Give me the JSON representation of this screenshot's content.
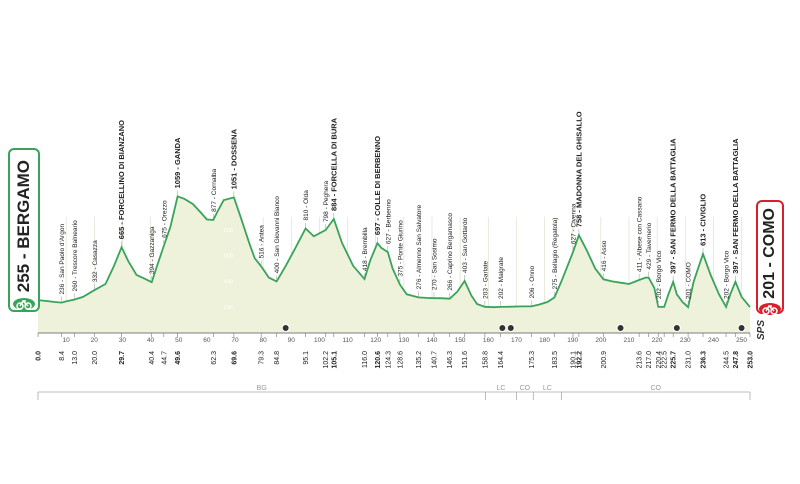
{
  "colors": {
    "fill": "#eef2da",
    "line": "#3aa35a",
    "start": "#3aa35a",
    "finish": "#d9202a",
    "text": "#333333"
  },
  "start_badge": {
    "text": "255 - BERGAMO",
    "icon": "cyclist-icon"
  },
  "finish_badge": {
    "text": "201 - COMO",
    "icon": "cyclist-icon"
  },
  "sponsor_mark": "SPS",
  "chart_data": {
    "type": "area",
    "title": "",
    "xlabel": "",
    "ylabel": "",
    "xlim": [
      0,
      253
    ],
    "ylim": [
      0,
      1100
    ],
    "x_ticks": [
      0,
      10,
      20,
      30,
      40,
      50,
      60,
      70,
      80,
      90,
      100,
      110,
      120,
      130,
      140,
      150,
      160,
      170,
      180,
      190,
      200,
      210,
      220,
      230,
      240,
      250
    ],
    "y_ticks": [
      200,
      400,
      600,
      800
    ],
    "profile": [
      [
        0,
        255
      ],
      [
        3,
        248
      ],
      [
        6,
        240
      ],
      [
        8.4,
        236
      ],
      [
        10,
        245
      ],
      [
        13,
        260
      ],
      [
        16,
        280
      ],
      [
        20,
        332
      ],
      [
        24,
        380
      ],
      [
        27,
        520
      ],
      [
        29.7,
        665
      ],
      [
        32,
        560
      ],
      [
        35,
        450
      ],
      [
        38,
        420
      ],
      [
        40.4,
        394
      ],
      [
        42,
        500
      ],
      [
        44.7,
        675
      ],
      [
        47,
        820
      ],
      [
        49.6,
        1059
      ],
      [
        52,
        1040
      ],
      [
        55,
        1000
      ],
      [
        58,
        930
      ],
      [
        60,
        880
      ],
      [
        62.3,
        877
      ],
      [
        64,
        950
      ],
      [
        66,
        1030
      ],
      [
        69.6,
        1051
      ],
      [
        72,
        900
      ],
      [
        75,
        700
      ],
      [
        77,
        580
      ],
      [
        79.3,
        516
      ],
      [
        82,
        430
      ],
      [
        84.8,
        400
      ],
      [
        88,
        520
      ],
      [
        91,
        640
      ],
      [
        95.1,
        810
      ],
      [
        98,
        750
      ],
      [
        102.2,
        798
      ],
      [
        105.1,
        884
      ],
      [
        108,
        700
      ],
      [
        112,
        520
      ],
      [
        116,
        418
      ],
      [
        118,
        560
      ],
      [
        120.6,
        697
      ],
      [
        122,
        660
      ],
      [
        124.3,
        627
      ],
      [
        126,
        500
      ],
      [
        128.6,
        375
      ],
      [
        131,
        300
      ],
      [
        135.2,
        276
      ],
      [
        138,
        272
      ],
      [
        140.7,
        270
      ],
      [
        143,
        270
      ],
      [
        146.3,
        266
      ],
      [
        149,
        320
      ],
      [
        151.6,
        403
      ],
      [
        154,
        290
      ],
      [
        156,
        225
      ],
      [
        158.8,
        203
      ],
      [
        162,
        200
      ],
      [
        164.4,
        202
      ],
      [
        168,
        204
      ],
      [
        172,
        206
      ],
      [
        175.3,
        206
      ],
      [
        178,
        220
      ],
      [
        181,
        240
      ],
      [
        183.5,
        275
      ],
      [
        186,
        400
      ],
      [
        190.1,
        627
      ],
      [
        192.2,
        758
      ],
      [
        195,
        640
      ],
      [
        198,
        500
      ],
      [
        200.9,
        416
      ],
      [
        204,
        400
      ],
      [
        207,
        390
      ],
      [
        210,
        380
      ],
      [
        213.6,
        411
      ],
      [
        216,
        430
      ],
      [
        217,
        429
      ],
      [
        219,
        350
      ],
      [
        220.4,
        202
      ],
      [
        222.5,
        202
      ],
      [
        224,
        300
      ],
      [
        225.7,
        397
      ],
      [
        227,
        300
      ],
      [
        229,
        240
      ],
      [
        231,
        201
      ],
      [
        233,
        400
      ],
      [
        236.3,
        613
      ],
      [
        239,
        450
      ],
      [
        242,
        300
      ],
      [
        244.5,
        202
      ],
      [
        246,
        300
      ],
      [
        247.8,
        397
      ],
      [
        250,
        280
      ],
      [
        253,
        201
      ]
    ],
    "bottom_km": [
      {
        "km": 0,
        "label": "0.0",
        "bold": true
      },
      {
        "km": 8.4,
        "label": "8.4"
      },
      {
        "km": 13.0,
        "label": "13.0"
      },
      {
        "km": 20.0,
        "label": "20.0"
      },
      {
        "km": 29.7,
        "label": "29.7",
        "bold": true
      },
      {
        "km": 40.4,
        "label": "40.4"
      },
      {
        "km": 44.7,
        "label": "44.7"
      },
      {
        "km": 49.6,
        "label": "49.6",
        "bold": true
      },
      {
        "km": 62.3,
        "label": "62.3"
      },
      {
        "km": 69.6,
        "label": "69.6",
        "bold": true
      },
      {
        "km": 79.3,
        "label": "79.3"
      },
      {
        "km": 84.8,
        "label": "84.8"
      },
      {
        "km": 95.1,
        "label": "95.1"
      },
      {
        "km": 102.2,
        "label": "102.2"
      },
      {
        "km": 105.1,
        "label": "105.1",
        "bold": true
      },
      {
        "km": 116.0,
        "label": "116.0"
      },
      {
        "km": 120.6,
        "label": "120.6",
        "bold": true
      },
      {
        "km": 124.3,
        "label": "124.3"
      },
      {
        "km": 128.6,
        "label": "128.6"
      },
      {
        "km": 135.2,
        "label": "135.2"
      },
      {
        "km": 140.7,
        "label": "140.7"
      },
      {
        "km": 146.3,
        "label": "146.3"
      },
      {
        "km": 151.6,
        "label": "151.6"
      },
      {
        "km": 158.8,
        "label": "158.8"
      },
      {
        "km": 164.4,
        "label": "164.4"
      },
      {
        "km": 175.3,
        "label": "175.3"
      },
      {
        "km": 183.5,
        "label": "183.5"
      },
      {
        "km": 190.1,
        "label": "190.1"
      },
      {
        "km": 192.2,
        "label": "192.2",
        "bold": true
      },
      {
        "km": 200.9,
        "label": "200.9"
      },
      {
        "km": 213.6,
        "label": "213.6"
      },
      {
        "km": 217.0,
        "label": "217.0"
      },
      {
        "km": 220.4,
        "label": "220.4"
      },
      {
        "km": 222.5,
        "label": "222.5"
      },
      {
        "km": 225.7,
        "label": "225.7",
        "bold": true
      },
      {
        "km": 231.0,
        "label": "231.0"
      },
      {
        "km": 236.3,
        "label": "236.3",
        "bold": true
      },
      {
        "km": 244.5,
        "label": "244.5"
      },
      {
        "km": 247.8,
        "label": "247.8",
        "bold": true
      },
      {
        "km": 253.0,
        "label": "253.0",
        "bold": true
      }
    ],
    "places": [
      {
        "km": 8.4,
        "alt": "236",
        "name": "San Paolo d'Argon"
      },
      {
        "km": 13.0,
        "alt": "260",
        "name": "Trescore Balneario"
      },
      {
        "km": 20.0,
        "alt": "332",
        "name": "Casazza"
      },
      {
        "km": 29.7,
        "alt": "665",
        "name": "FORCELLINO DI BIANZANO",
        "bold": true
      },
      {
        "km": 40.4,
        "alt": "394",
        "name": "Gazzaniga"
      },
      {
        "km": 44.7,
        "alt": "675",
        "name": "Orezzo"
      },
      {
        "km": 49.6,
        "alt": "1059",
        "name": "GANDA",
        "bold": true
      },
      {
        "km": 62.3,
        "alt": "877",
        "name": "Cornalba"
      },
      {
        "km": 69.6,
        "alt": "1051",
        "name": "DOSSENA",
        "bold": true
      },
      {
        "km": 79.3,
        "alt": "516",
        "name": "Antea"
      },
      {
        "km": 84.8,
        "alt": "400",
        "name": "San Giovanni Bianco"
      },
      {
        "km": 95.1,
        "alt": "810",
        "name": "Olda"
      },
      {
        "km": 102.2,
        "alt": "798",
        "name": "Peghera"
      },
      {
        "km": 105.1,
        "alt": "884",
        "name": "FORCELLA DI BURA",
        "bold": true
      },
      {
        "km": 116.0,
        "alt": "418",
        "name": "Brembilla"
      },
      {
        "km": 120.6,
        "alt": "697",
        "name": "COLLE DI BERBENNO",
        "bold": true
      },
      {
        "km": 124.3,
        "alt": "627",
        "name": "Berbenno"
      },
      {
        "km": 128.6,
        "alt": "375",
        "name": "Ponte Giurino"
      },
      {
        "km": 135.2,
        "alt": "276",
        "name": "Almenno San Salvatore"
      },
      {
        "km": 140.7,
        "alt": "270",
        "name": "San Sosimo"
      },
      {
        "km": 146.3,
        "alt": "266",
        "name": "Caprino Bergamasco"
      },
      {
        "km": 151.6,
        "alt": "403",
        "name": "San Gottardo"
      },
      {
        "km": 158.8,
        "alt": "203",
        "name": "Garlate"
      },
      {
        "km": 164.4,
        "alt": "202",
        "name": "Malgrate"
      },
      {
        "km": 175.3,
        "alt": "206",
        "name": "Onno"
      },
      {
        "km": 183.5,
        "alt": "275",
        "name": "Bellagio (Regatola)"
      },
      {
        "km": 190.1,
        "alt": "627",
        "name": "Civenna"
      },
      {
        "km": 192.2,
        "alt": "758",
        "name": "MADONNA DEL GHISALLO",
        "bold": true
      },
      {
        "km": 200.9,
        "alt": "416",
        "name": "Asso"
      },
      {
        "km": 213.6,
        "alt": "411",
        "name": "Albese con Cassano"
      },
      {
        "km": 217.0,
        "alt": "429",
        "name": "Tavernerio"
      },
      {
        "km": 220.4,
        "alt": "202",
        "name": "Borgo Vico"
      },
      {
        "km": 225.7,
        "alt": "397",
        "name": "SAN FERMO DELLA BATTAGLIA",
        "bold": true
      },
      {
        "km": 231.0,
        "alt": "201",
        "name": "COMO"
      },
      {
        "km": 236.3,
        "alt": "613",
        "name": "CIVIGLIO",
        "bold": true
      },
      {
        "km": 244.5,
        "alt": "202",
        "name": "Borgo Vico"
      },
      {
        "km": 247.8,
        "alt": "397",
        "name": "SAN FERMO DELLA BATTAGLIA",
        "bold": true
      }
    ],
    "sprints_km": [
      88,
      165,
      168,
      207,
      227,
      250
    ],
    "provinces": [
      {
        "label": "BG",
        "from": 0,
        "to": 159
      },
      {
        "label": "LC",
        "from": 159,
        "to": 170
      },
      {
        "label": "CO",
        "from": 170,
        "to": 176
      },
      {
        "label": "LC",
        "from": 176,
        "to": 186
      },
      {
        "label": "CO",
        "from": 186,
        "to": 253
      }
    ]
  }
}
